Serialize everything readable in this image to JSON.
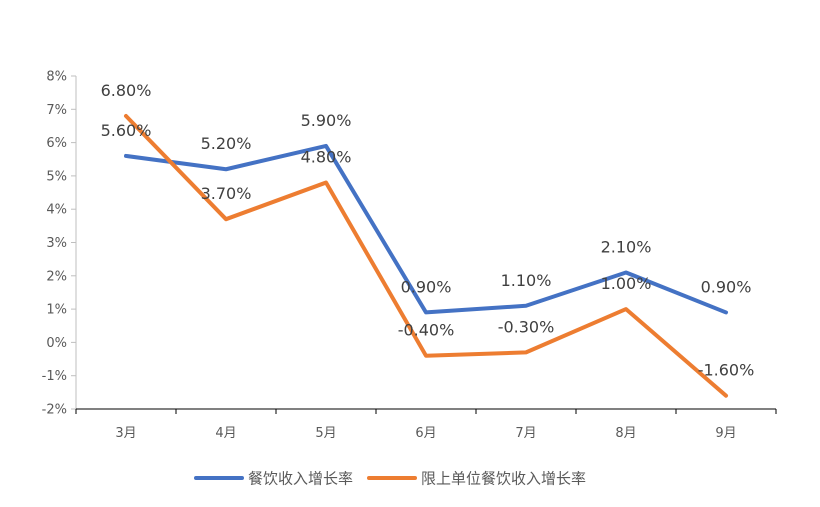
{
  "chart_data": {
    "type": "line",
    "title": "",
    "xlabel": "",
    "ylabel": "",
    "categories": [
      "3月",
      "4月",
      "5月",
      "6月",
      "7月",
      "8月",
      "9月"
    ],
    "ylim": [
      -2,
      8
    ],
    "y_ticks": [
      "8%",
      "7%",
      "6%",
      "5%",
      "4%",
      "3%",
      "2%",
      "1%",
      "0%",
      "-1%",
      "-2%"
    ],
    "grid": false,
    "legend_position": "bottom",
    "series": [
      {
        "name": "餐饮收入增长率",
        "color": "#4472C4",
        "values": [
          5.6,
          5.2,
          5.9,
          0.9,
          1.1,
          2.1,
          0.9
        ],
        "labels": [
          "5.60%",
          "5.20%",
          "5.90%",
          "0.90%",
          "1.10%",
          "2.10%",
          "0.90%"
        ]
      },
      {
        "name": "限上单位餐饮收入增长率",
        "color": "#ED7D31",
        "values": [
          6.8,
          3.7,
          4.8,
          -0.4,
          -0.3,
          1.0,
          -1.6
        ],
        "labels": [
          "6.80%",
          "3.70%",
          "4.80%",
          "-0.40%",
          "-0.30%",
          "1.00%",
          "-1.60%"
        ]
      }
    ]
  }
}
